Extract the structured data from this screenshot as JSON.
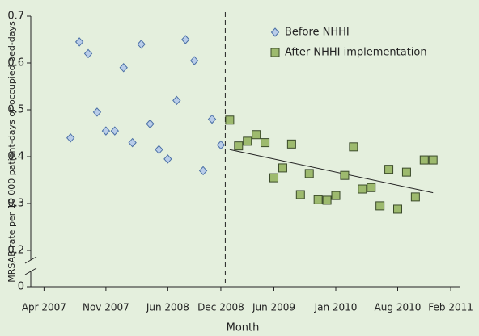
{
  "chart_data": {
    "type": "scatter",
    "x_label": "Month",
    "y_label": "MRSAB rate per 10 000 patient-days or occupied bed-days",
    "xlim": [
      -1.5,
      47
    ],
    "ylim": [
      0,
      0.7
    ],
    "xticks": [
      {
        "value": 0,
        "label": "Apr 2007"
      },
      {
        "value": 7,
        "label": "Nov 2007"
      },
      {
        "value": 14,
        "label": "Jun 2008"
      },
      {
        "value": 20,
        "label": "Dec 2008"
      },
      {
        "value": 26,
        "label": "Jun 2009"
      },
      {
        "value": 33,
        "label": "Jan 2010"
      },
      {
        "value": 40,
        "label": "Aug 2010"
      },
      {
        "value": 46,
        "label": "Feb 2011"
      }
    ],
    "yticks": [
      0,
      0.2,
      0.3,
      0.4,
      0.5,
      0.6,
      0.7
    ],
    "legend": "upper right",
    "series": [
      {
        "name": "Before NHHI",
        "color": "#b9cde9",
        "marker": "diamond",
        "x": [
          3,
          4,
          5,
          6,
          7,
          8,
          9,
          10,
          11,
          12,
          13,
          14,
          15,
          16,
          17,
          18,
          19,
          20
        ],
        "values": [
          0.44,
          0.645,
          0.62,
          0.495,
          0.455,
          0.455,
          0.59,
          0.43,
          0.64,
          0.47,
          0.415,
          0.395,
          0.52,
          0.65,
          0.605,
          0.37,
          0.48,
          0.425
        ]
      },
      {
        "name": "After NHHI implementation",
        "color": "#9dba6e",
        "marker": "square",
        "x": [
          21,
          22,
          23,
          24,
          25,
          26,
          27,
          28,
          29,
          30,
          31,
          32,
          33,
          34,
          35,
          36,
          37,
          38,
          39,
          40,
          41,
          42,
          43,
          44
        ],
        "values": [
          0.478,
          0.423,
          0.433,
          0.447,
          0.43,
          0.355,
          0.376,
          0.427,
          0.319,
          0.364,
          0.308,
          0.307,
          0.317,
          0.36,
          0.421,
          0.331,
          0.334,
          0.295,
          0.373,
          0.288,
          0.367,
          0.314,
          0.393,
          0.393
        ]
      }
    ],
    "trend": {
      "x": [
        21,
        44
      ],
      "values": [
        0.415,
        0.323
      ],
      "color": "#222222"
    }
  }
}
